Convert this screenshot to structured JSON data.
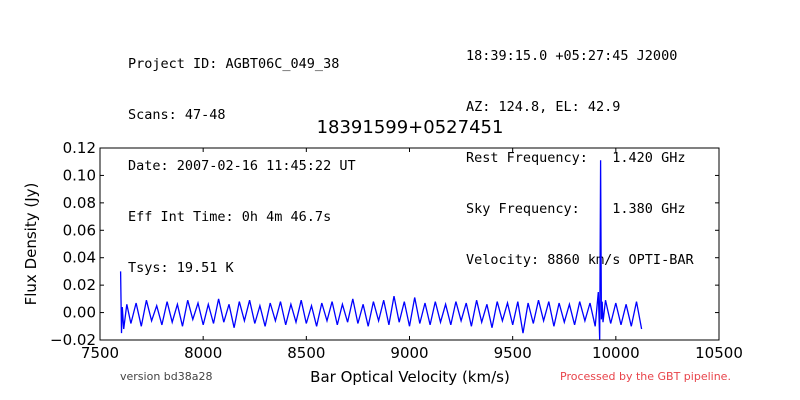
{
  "header": {
    "left_lines": [
      "Project ID: AGBT06C_049_38",
      "Scans: 47-48",
      "Date: 2007-02-16 11:45:22 UT",
      "Eff Int Time: 0h 4m 46.7s",
      "Tsys: 19.51 K"
    ],
    "right_lines": [
      "18:39:15.0 +05:27:45 J2000",
      "AZ: 124.8, EL: 42.9",
      "Rest Frequency:   1.420 GHz",
      "Sky Frequency:    1.380 GHz",
      "Velocity: 8860 km/s OPTI-BAR"
    ]
  },
  "footer": {
    "version": "version bd38a28",
    "processed": "Processed by the GBT pipeline."
  },
  "colors": {
    "line": "#0000ff",
    "processed_text": "#e8434a"
  },
  "chart_data": {
    "type": "line",
    "title": "18391599+0527451",
    "xlabel": "Bar Optical Velocity (km/s)",
    "ylabel": "Flux Density (Jy)",
    "xlim": [
      7500,
      10500
    ],
    "ylim": [
      -0.02,
      0.12
    ],
    "xticks": [
      7500,
      8000,
      8500,
      9000,
      9500,
      10000,
      10500
    ],
    "yticks": [
      -0.02,
      0.0,
      0.02,
      0.04,
      0.06,
      0.08,
      0.1,
      0.12
    ],
    "ytick_labels": [
      "−0.02",
      "0.00",
      "0.02",
      "0.04",
      "0.06",
      "0.08",
      "0.10",
      "0.12"
    ],
    "grid": false,
    "series": [
      {
        "x": [
          7600,
          7604,
          7608,
          7615,
          7630,
          7650,
          7675,
          7700,
          7725,
          7750,
          7775,
          7800,
          7825,
          7850,
          7875,
          7900,
          7925,
          7950,
          7975,
          8000,
          8025,
          8050,
          8075,
          8100,
          8125,
          8150,
          8175,
          8200,
          8225,
          8250,
          8275,
          8300,
          8325,
          8350,
          8375,
          8400,
          8425,
          8450,
          8475,
          8500,
          8525,
          8550,
          8575,
          8600,
          8625,
          8650,
          8675,
          8700,
          8725,
          8750,
          8775,
          8800,
          8825,
          8850,
          8875,
          8900,
          8925,
          8950,
          8975,
          9000,
          9025,
          9050,
          9075,
          9100,
          9125,
          9150,
          9175,
          9200,
          9225,
          9250,
          9275,
          9300,
          9325,
          9350,
          9375,
          9400,
          9425,
          9450,
          9475,
          9500,
          9525,
          9550,
          9575,
          9600,
          9625,
          9650,
          9675,
          9700,
          9725,
          9750,
          9775,
          9800,
          9825,
          9850,
          9875,
          9900,
          9915,
          9922,
          9926,
          9930,
          9934,
          9938,
          9950,
          9975,
          10000,
          10025,
          10050,
          10075,
          10100,
          10125
        ],
        "y": [
          0.03,
          -0.015,
          0.004,
          -0.012,
          0.006,
          -0.008,
          0.007,
          -0.01,
          0.009,
          -0.006,
          0.005,
          -0.009,
          0.008,
          -0.007,
          0.006,
          -0.01,
          0.009,
          -0.005,
          0.007,
          -0.009,
          0.006,
          -0.008,
          0.01,
          -0.007,
          0.006,
          -0.011,
          0.008,
          -0.006,
          0.009,
          -0.008,
          0.005,
          -0.01,
          0.007,
          -0.006,
          0.008,
          -0.009,
          0.006,
          -0.007,
          0.009,
          -0.008,
          0.005,
          -0.01,
          0.007,
          -0.006,
          0.008,
          -0.009,
          0.006,
          -0.007,
          0.01,
          -0.008,
          0.006,
          -0.01,
          0.008,
          -0.006,
          0.009,
          -0.009,
          0.012,
          -0.007,
          0.008,
          -0.01,
          0.011,
          -0.008,
          0.007,
          -0.009,
          0.008,
          -0.007,
          0.006,
          -0.009,
          0.008,
          -0.006,
          0.007,
          -0.01,
          0.009,
          -0.007,
          0.006,
          -0.011,
          0.008,
          -0.006,
          0.007,
          -0.009,
          0.008,
          -0.015,
          0.007,
          -0.008,
          0.009,
          -0.006,
          0.008,
          -0.01,
          0.007,
          -0.007,
          0.006,
          -0.009,
          0.008,
          -0.006,
          0.007,
          -0.01,
          0.015,
          -0.02,
          0.111,
          -0.005,
          0.008,
          -0.007,
          0.009,
          -0.008,
          0.007,
          -0.009,
          0.006,
          -0.01,
          0.008,
          -0.012
        ]
      }
    ]
  }
}
